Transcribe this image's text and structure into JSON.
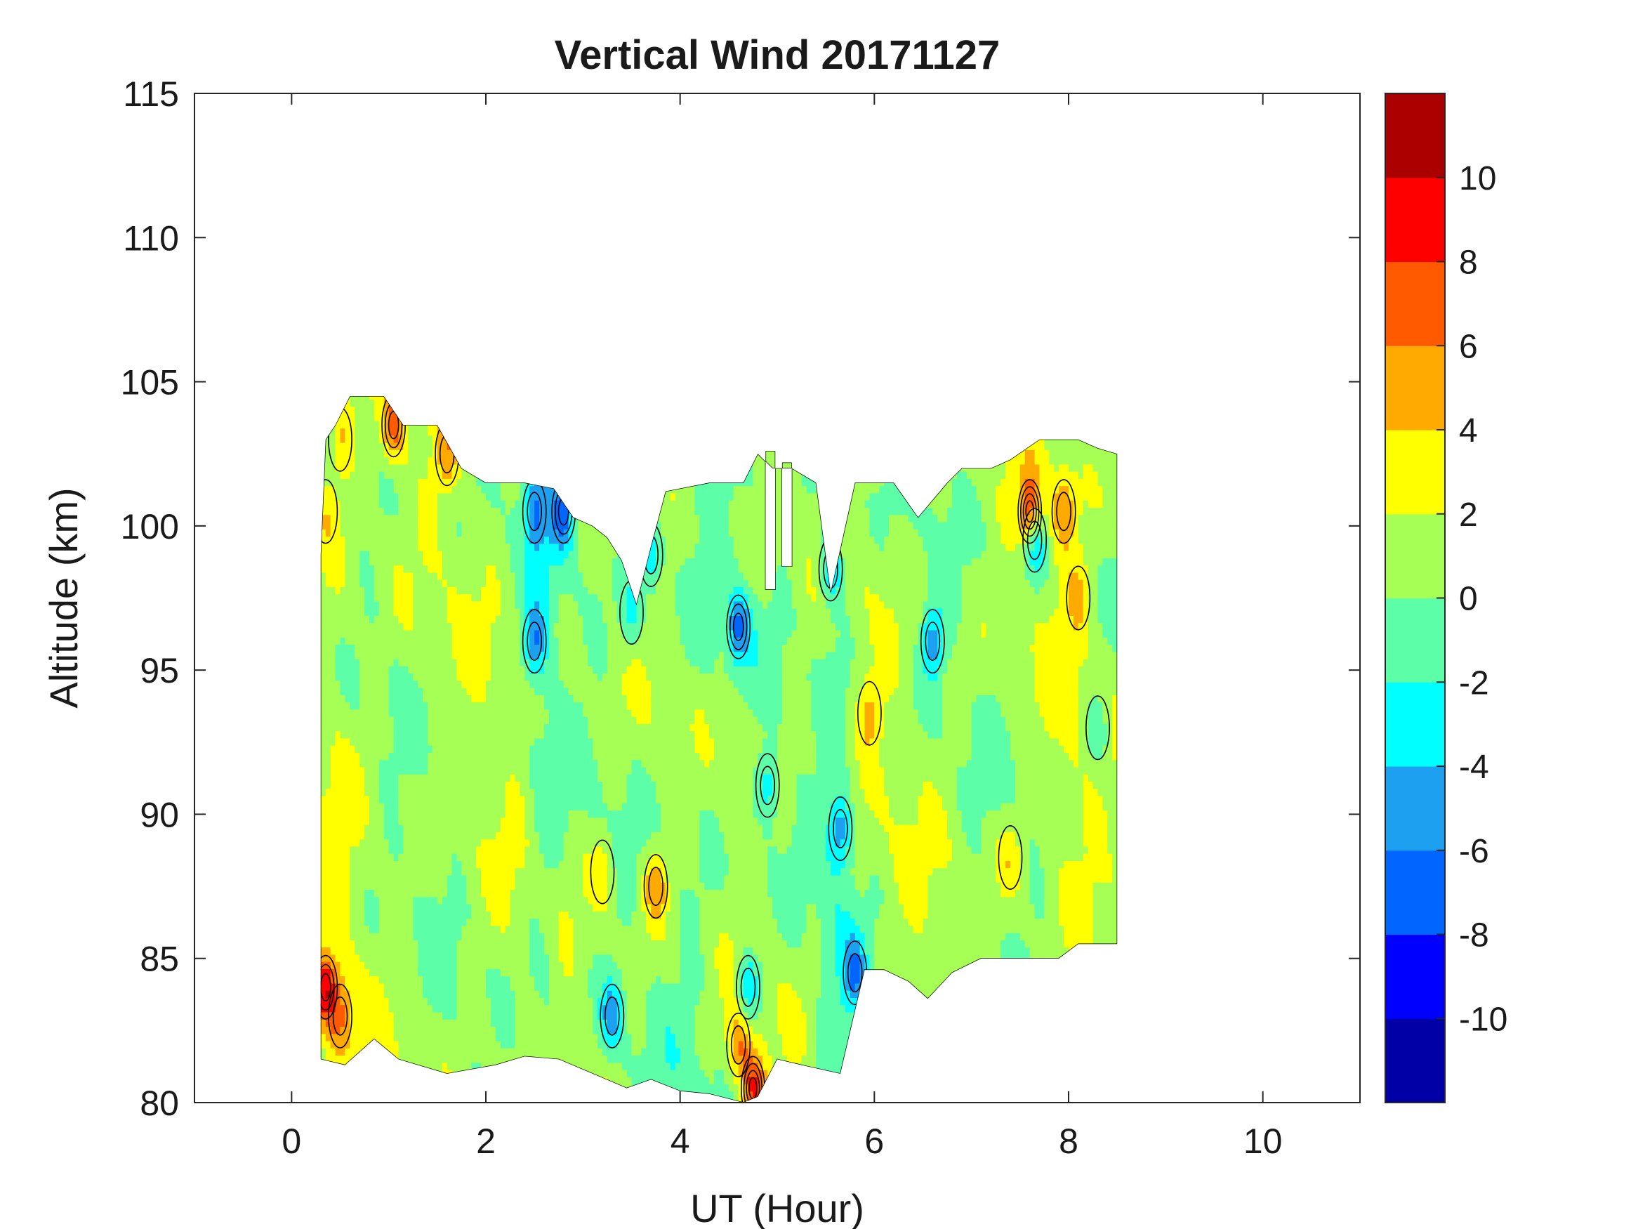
{
  "chart_data": {
    "type": "heatmap",
    "subtype": "filled-contour",
    "title": "Vertical Wind 20171127",
    "xlabel": "UT (Hour)",
    "ylabel": "Altitude (km)",
    "xlim": [
      -1,
      11
    ],
    "ylim": [
      80,
      115
    ],
    "xticks": [
      0,
      2,
      4,
      6,
      8,
      10
    ],
    "yticks": [
      80,
      85,
      90,
      95,
      100,
      105,
      110,
      115
    ],
    "xtick_labels": [
      "0",
      "2",
      "4",
      "6",
      "8",
      "10"
    ],
    "ytick_labels": [
      "80",
      "85",
      "90",
      "95",
      "100",
      "105",
      "110",
      "115"
    ],
    "grid": false,
    "colorbar": {
      "range": [
        -12,
        12
      ],
      "ticks": [
        10,
        8,
        6,
        4,
        2,
        0,
        -2,
        -4,
        -6,
        -8,
        -10
      ],
      "tick_labels": [
        "10",
        "8",
        "6",
        "4",
        "2",
        "0",
        "-2",
        "-4",
        "-6",
        "-8",
        "-10"
      ],
      "levels": [
        -12,
        -10,
        -8,
        -6,
        -4,
        -2,
        0,
        2,
        4,
        6,
        8,
        10,
        12
      ],
      "colors": [
        "#0000A6",
        "#0000FF",
        "#0066FF",
        "#1EA0F0",
        "#00FFFF",
        "#5CFFA8",
        "#A6FF55",
        "#FFFF00",
        "#FFAA00",
        "#FF5A00",
        "#FF0000",
        "#AA0000"
      ]
    },
    "data_extent": {
      "x_range": [
        0.3,
        8.5
      ],
      "y_range": [
        80,
        104.5
      ]
    },
    "features": [
      {
        "x": 0.35,
        "y": 84,
        "value": 7.5
      },
      {
        "x": 0.5,
        "y": 83,
        "value": 4.5
      },
      {
        "x": 0.35,
        "y": 100.5,
        "value": 3.0
      },
      {
        "x": 0.5,
        "y": 103,
        "value": 3.5
      },
      {
        "x": 1.05,
        "y": 103.5,
        "value": 6.5
      },
      {
        "x": 1.6,
        "y": 102.5,
        "value": 4.5
      },
      {
        "x": 2.5,
        "y": 96,
        "value": -5.0
      },
      {
        "x": 2.5,
        "y": 100.5,
        "value": -4.5
      },
      {
        "x": 2.8,
        "y": 100.5,
        "value": -6.0
      },
      {
        "x": 3.2,
        "y": 88,
        "value": 3.5
      },
      {
        "x": 3.75,
        "y": 87.5,
        "value": 5.5
      },
      {
        "x": 3.5,
        "y": 97,
        "value": -3.0
      },
      {
        "x": 3.7,
        "y": 99,
        "value": -5.0
      },
      {
        "x": 3.3,
        "y": 83,
        "value": -5.0
      },
      {
        "x": 4.6,
        "y": 82,
        "value": 5.5
      },
      {
        "x": 4.7,
        "y": 84,
        "value": -5.0
      },
      {
        "x": 4.75,
        "y": 80.5,
        "value": 8.0
      },
      {
        "x": 4.6,
        "y": 96.5,
        "value": -6.0
      },
      {
        "x": 4.9,
        "y": 91,
        "value": -4.0
      },
      {
        "x": 5.65,
        "y": 89.5,
        "value": -5.0
      },
      {
        "x": 5.55,
        "y": 98.5,
        "value": -4.5
      },
      {
        "x": 5.95,
        "y": 93.5,
        "value": 3.5
      },
      {
        "x": 5.8,
        "y": 84.5,
        "value": -5.0
      },
      {
        "x": 6.6,
        "y": 96,
        "value": -5.0
      },
      {
        "x": 7.6,
        "y": 100.5,
        "value": 8.0
      },
      {
        "x": 7.65,
        "y": 99.5,
        "value": -5.0
      },
      {
        "x": 7.95,
        "y": 100.5,
        "value": 5.0
      },
      {
        "x": 7.4,
        "y": 88.5,
        "value": 3.0
      },
      {
        "x": 8.1,
        "y": 97.5,
        "value": 3.0
      },
      {
        "x": 8.3,
        "y": 93,
        "value": -3.0
      }
    ]
  }
}
